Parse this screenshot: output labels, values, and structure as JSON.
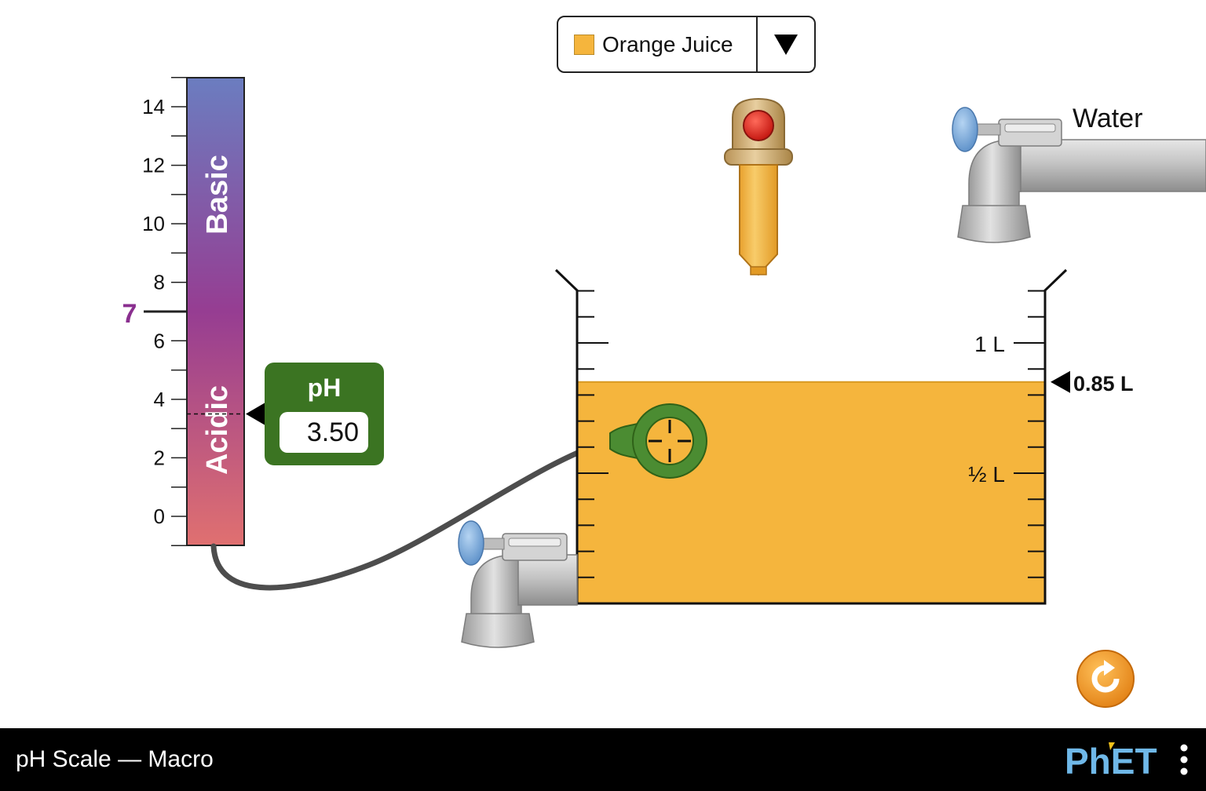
{
  "app": {
    "title": "pH Scale — Macro",
    "logo": "PhET"
  },
  "solute": {
    "selected": "Orange Juice",
    "swatch_color": "#f5b53d",
    "dropdown_icon": "triangle-down-icon"
  },
  "scale": {
    "ticks": [
      "0",
      "2",
      "4",
      "6",
      "8",
      "10",
      "12",
      "14"
    ],
    "neutral_label": "7",
    "basic_label": "Basic",
    "acidic_label": "Acidic",
    "neutral_color": "#8a2f8f"
  },
  "meter": {
    "title": "pH",
    "value": "3.50",
    "body_color": "#3b7422"
  },
  "beaker": {
    "volume_labels": {
      "one_liter": "1 L",
      "half_liter": "½ L"
    },
    "volume_readout": "0.85 L",
    "volume_liters": 0.85,
    "liquid_color": "#f5b53d"
  },
  "faucets": {
    "water_label": "Water"
  },
  "controls": {
    "reset_icon": "reset-all-icon",
    "menu_icon": "kebab-menu-icon"
  }
}
